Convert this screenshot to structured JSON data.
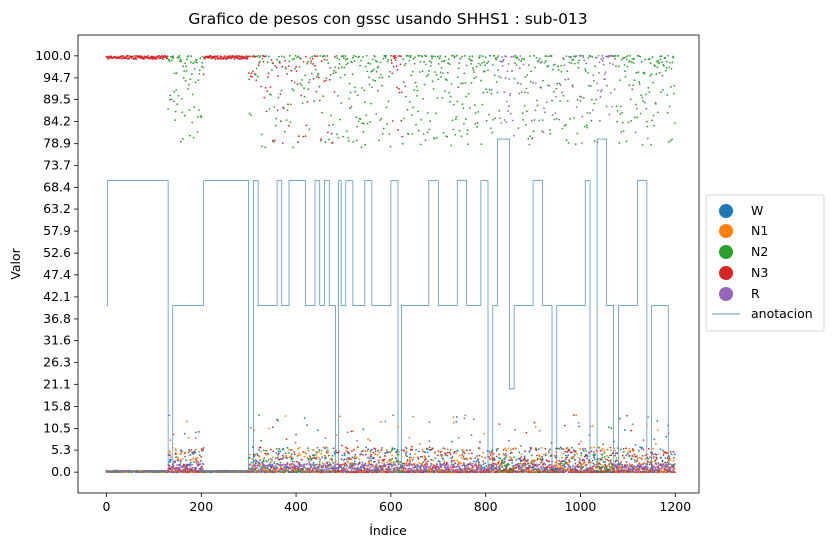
{
  "chart_data": {
    "type": "scatter",
    "title": "Grafico de pesos con gssc usando SHHS1 :  sub-013",
    "xlabel": "Índice",
    "ylabel": "Valor",
    "xlim": [
      -60,
      1250
    ],
    "ylim": [
      -5,
      105
    ],
    "x_ticks": [
      0,
      200,
      400,
      600,
      800,
      1000,
      1200
    ],
    "y_ticks": [
      "0.0",
      "5.3",
      "10.5",
      "15.8",
      "21.1",
      "26.3",
      "31.6",
      "36.8",
      "42.1",
      "47.4",
      "52.6",
      "57.9",
      "63.2",
      "68.4",
      "73.7",
      "78.9",
      "84.2",
      "89.5",
      "94.7",
      "100.0"
    ],
    "legend_position": "center-right outside",
    "grid": false,
    "series": [
      {
        "name": "W",
        "color": "#1f77b4",
        "kind": "points"
      },
      {
        "name": "N1",
        "color": "#ff7f0e",
        "kind": "points"
      },
      {
        "name": "N2",
        "color": "#2ca02c",
        "kind": "points"
      },
      {
        "name": "N3",
        "color": "#d62728",
        "kind": "points"
      },
      {
        "name": "R",
        "color": "#9467bd",
        "kind": "points"
      },
      {
        "name": "anotacion",
        "color": "#1f77b4",
        "kind": "line"
      }
    ],
    "annotation_segments": [
      [
        0,
        40
      ],
      [
        2,
        70
      ],
      [
        130,
        0
      ],
      [
        140,
        40
      ],
      [
        205,
        70
      ],
      [
        300,
        0
      ],
      [
        310,
        70
      ],
      [
        320,
        40
      ],
      [
        360,
        70
      ],
      [
        370,
        40
      ],
      [
        385,
        70
      ],
      [
        420,
        40
      ],
      [
        440,
        70
      ],
      [
        450,
        40
      ],
      [
        460,
        70
      ],
      [
        470,
        40
      ],
      [
        483,
        0
      ],
      [
        490,
        70
      ],
      [
        495,
        40
      ],
      [
        505,
        70
      ],
      [
        520,
        40
      ],
      [
        545,
        70
      ],
      [
        560,
        40
      ],
      [
        600,
        70
      ],
      [
        615,
        0
      ],
      [
        622,
        40
      ],
      [
        680,
        70
      ],
      [
        700,
        40
      ],
      [
        740,
        70
      ],
      [
        760,
        40
      ],
      [
        790,
        70
      ],
      [
        805,
        0
      ],
      [
        815,
        40
      ],
      [
        825,
        80
      ],
      [
        850,
        20
      ],
      [
        860,
        40
      ],
      [
        900,
        70
      ],
      [
        920,
        40
      ],
      [
        940,
        0
      ],
      [
        950,
        40
      ],
      [
        1010,
        70
      ],
      [
        1020,
        0
      ],
      [
        1035,
        80
      ],
      [
        1055,
        40
      ],
      [
        1070,
        0
      ],
      [
        1080,
        40
      ],
      [
        1120,
        70
      ],
      [
        1140,
        0
      ],
      [
        1150,
        40
      ],
      [
        1185,
        0
      ],
      [
        1190,
        0
      ]
    ]
  },
  "legend": {
    "w": "W",
    "n1": "N1",
    "n2": "N2",
    "n3": "N3",
    "r": "R",
    "annotation": "anotacion"
  }
}
